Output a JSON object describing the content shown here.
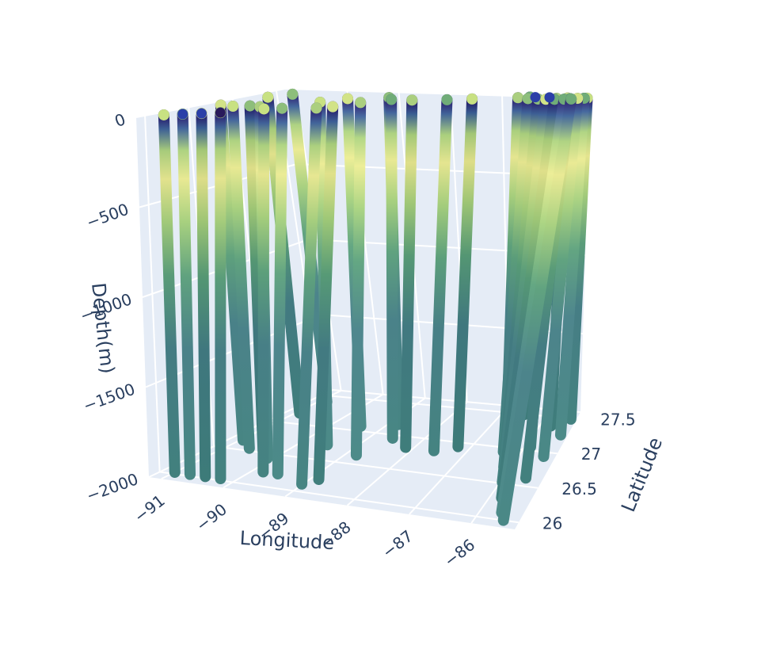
{
  "chart_data": {
    "type": "scatter3d",
    "title": "",
    "axes": {
      "x": {
        "label": "Longitude",
        "range": [
          -91.2,
          -85.3
        ],
        "ticks": [
          "−91",
          "−90",
          "−89",
          "−88",
          "−87",
          "−86"
        ],
        "tick_values": [
          -91,
          -90,
          -89,
          -88,
          -87,
          -86
        ]
      },
      "y": {
        "label": "Latitude",
        "range": [
          25.9,
          27.6
        ],
        "ticks": [
          "26",
          "26.5",
          "27",
          "27.5"
        ],
        "tick_values": [
          26,
          26.5,
          27,
          27.5
        ]
      },
      "z": {
        "label": "Depth(m)",
        "range": [
          -2000,
          0
        ],
        "ticks": [
          "0",
          "−500",
          "−1000",
          "−1500",
          "−2000"
        ],
        "tick_values": [
          0,
          -500,
          -1000,
          -1500,
          -2000
        ]
      }
    },
    "marker_color_scale": "haline-like (dark blue → teal → green → pale yellow)",
    "profiles": [
      {
        "lon": -90.95,
        "lat": 26.0,
        "bottom_depth": -1990
      },
      {
        "lon": -90.7,
        "lat": 26.0,
        "bottom_depth": -1990
      },
      {
        "lon": -90.45,
        "lat": 26.0,
        "bottom_depth": -1990
      },
      {
        "lon": -90.2,
        "lat": 26.0,
        "bottom_depth": -1990
      },
      {
        "lon": -90.85,
        "lat": 26.6,
        "bottom_depth": -1980
      },
      {
        "lon": -90.55,
        "lat": 26.5,
        "bottom_depth": -1985
      },
      {
        "lon": -90.3,
        "lat": 26.5,
        "bottom_depth": -1990
      },
      {
        "lon": -90.05,
        "lat": 26.4,
        "bottom_depth": -1990
      },
      {
        "lon": -90.75,
        "lat": 27.1,
        "bottom_depth": -1970
      },
      {
        "lon": -90.6,
        "lat": 27.3,
        "bottom_depth": -1960
      },
      {
        "lon": -89.8,
        "lat": 26.2,
        "bottom_depth": -1995
      },
      {
        "lon": -89.55,
        "lat": 26.2,
        "bottom_depth": -1995
      },
      {
        "lon": -89.45,
        "lat": 26.7,
        "bottom_depth": -1985
      },
      {
        "lon": -89.3,
        "lat": 27.0,
        "bottom_depth": -1970
      },
      {
        "lon": -89.0,
        "lat": 26.1,
        "bottom_depth": -1995
      },
      {
        "lon": -88.85,
        "lat": 26.2,
        "bottom_depth": -1995
      },
      {
        "lon": -88.75,
        "lat": 26.6,
        "bottom_depth": -1985
      },
      {
        "lon": -88.7,
        "lat": 27.1,
        "bottom_depth": -1975
      },
      {
        "lon": -88.5,
        "lat": 26.9,
        "bottom_depth": -1980
      },
      {
        "lon": -88.1,
        "lat": 26.8,
        "bottom_depth": -1985
      },
      {
        "lon": -87.55,
        "lat": 26.8,
        "bottom_depth": -1985
      },
      {
        "lon": -87.2,
        "lat": 26.9,
        "bottom_depth": -1985
      },
      {
        "lon": -86.55,
        "lat": 27.2,
        "bottom_depth": -1970
      },
      {
        "lon": -86.4,
        "lat": 27.4,
        "bottom_depth": -1960
      },
      {
        "lon": -86.3,
        "lat": 26.9,
        "bottom_depth": -1985
      },
      {
        "lon": -86.1,
        "lat": 26.7,
        "bottom_depth": -1990
      },
      {
        "lon": -85.95,
        "lat": 26.5,
        "bottom_depth": -1995
      },
      {
        "lon": -85.8,
        "lat": 26.3,
        "bottom_depth": -2000
      },
      {
        "lon": -85.65,
        "lat": 26.1,
        "bottom_depth": -2000
      },
      {
        "lon": -85.55,
        "lat": 26.0,
        "bottom_depth": -2000
      },
      {
        "lon": -85.6,
        "lat": 26.6,
        "bottom_depth": -1995
      },
      {
        "lon": -85.5,
        "lat": 26.9,
        "bottom_depth": -1985
      },
      {
        "lon": -85.4,
        "lat": 27.2,
        "bottom_depth": -1975
      },
      {
        "lon": -85.35,
        "lat": 27.4,
        "bottom_depth": -1960
      },
      {
        "lon": -85.7,
        "lat": 27.3,
        "bottom_depth": -1970
      },
      {
        "lon": -85.85,
        "lat": 27.0,
        "bottom_depth": -1980
      }
    ]
  }
}
